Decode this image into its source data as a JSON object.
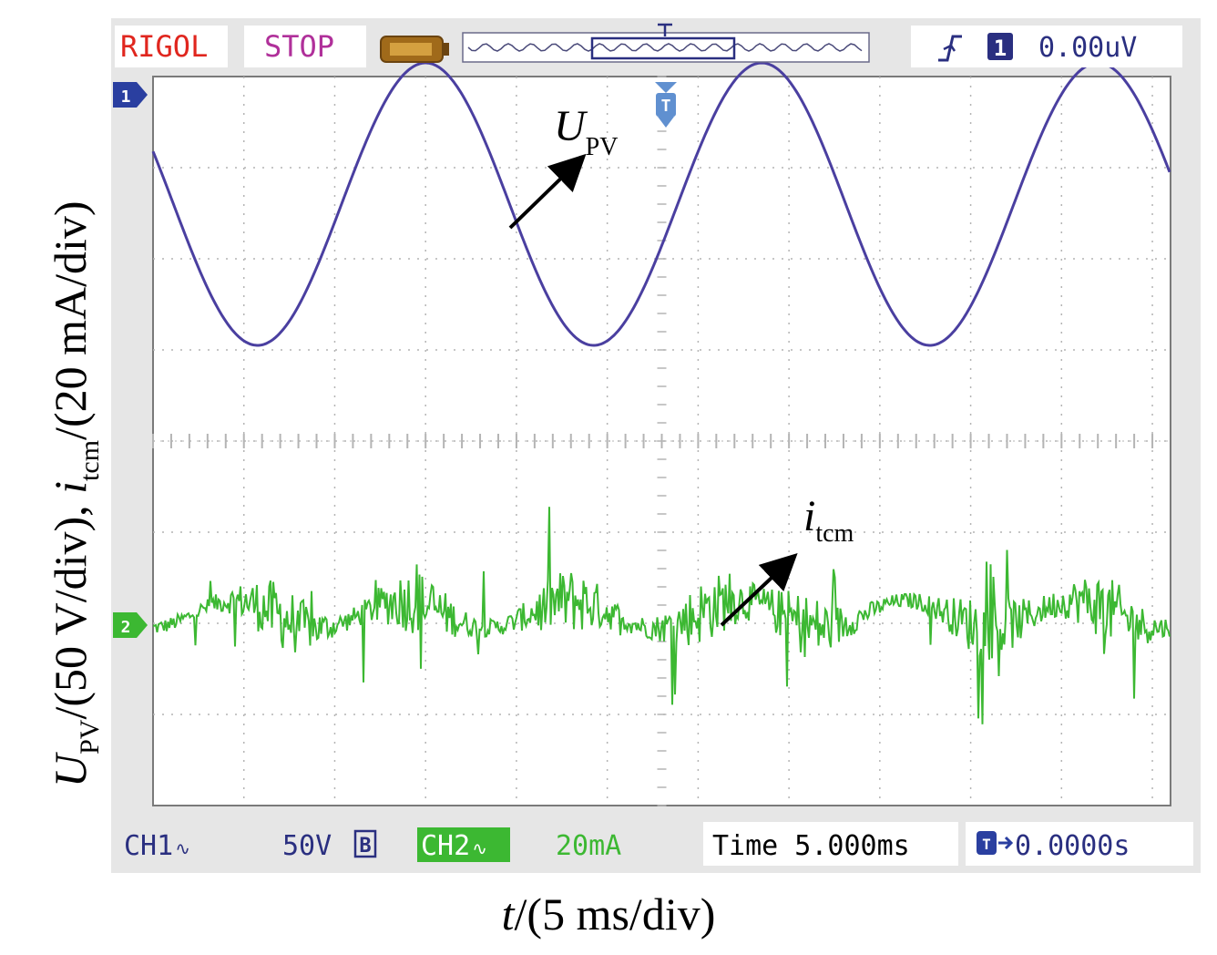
{
  "header": {
    "brand": "RIGOL",
    "run_state": "STOP",
    "trigger_channel": "1",
    "trigger_level": "0.00uV",
    "trigger_marker": "T"
  },
  "footer": {
    "ch1_label": "CH1",
    "ch1_coupling_symbol": "∿",
    "ch1_scale": "50V",
    "ch1_bw_symbol": "B",
    "ch2_label": "CH2",
    "ch2_coupling_symbol": "∿",
    "ch2_scale": "20mA",
    "time_label": "Time 5.000ms",
    "trigger_offset": "0.0000s",
    "trigger_offset_symbol": "T"
  },
  "markers": {
    "ch1": "1",
    "ch2": "2"
  },
  "annotations": {
    "upv_main": "U",
    "upv_sub": "PV",
    "itcm_main": "i",
    "itcm_sub": "tcm"
  },
  "axis_labels": {
    "y_u": "U",
    "y_u_sub": "PV",
    "y_part1": "/(50 V/div),  ",
    "y_i": "i",
    "y_i_sub": "tcm",
    "y_part2": "/(20 mA/div)",
    "x_t": "t",
    "x_rest": "/(5 ms/div)"
  },
  "colors": {
    "ch1": "#4a3fa0",
    "ch2": "#3cb832",
    "screen_bg": "#ffffff",
    "bezel": "#e6e6e6",
    "grid": "#b4b4b4",
    "brand": "#e0261e",
    "stop": "#b0309a",
    "info_text": "#2a2f80"
  },
  "chart_data": {
    "type": "line",
    "divisions": {
      "x": 11.2,
      "y": 8
    },
    "x_scale_ms_per_div": 5,
    "series": [
      {
        "name": "UPV",
        "channel": 1,
        "waveform": "sine",
        "amplitude_div": 1.55,
        "offset_div": 2.6,
        "period_div": 3.7,
        "first_peak_div": 3.0
      },
      {
        "name": "itcm",
        "channel": 2,
        "waveform": "noisy",
        "offset_div": -1.9,
        "envelope_amplitude_div": 0.15,
        "burst_centers_div": [
          1.4,
          2.9,
          4.6,
          6.1,
          7.2,
          9.2,
          10.5
        ],
        "spike_peak_div": 0.9
      }
    ]
  }
}
